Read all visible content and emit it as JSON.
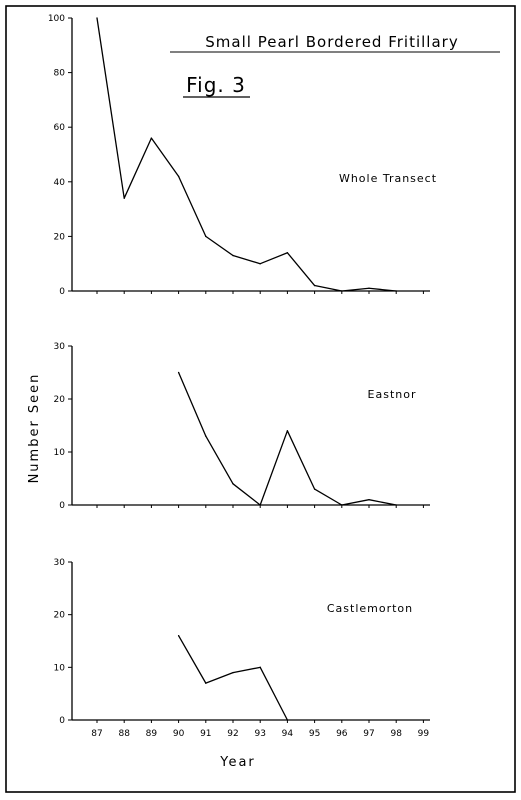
{
  "title": "Small Pearl Bordered Fritillary",
  "figure_label": "Fig. 3",
  "ylabel": "Number Seen",
  "xlabel": "Year",
  "chart_data": [
    {
      "type": "line",
      "title": "Whole Transect",
      "x": [
        "87",
        "88",
        "89",
        "90",
        "91",
        "92",
        "93",
        "94",
        "95",
        "96",
        "97",
        "98",
        "99"
      ],
      "ylim": [
        0,
        100
      ],
      "yticks": [
        0,
        20,
        40,
        60,
        80,
        100
      ],
      "series": [
        {
          "values": [
            100,
            34,
            56,
            42,
            20,
            13,
            10,
            14,
            2,
            0,
            1,
            0,
            null
          ]
        }
      ],
      "grid": false
    },
    {
      "type": "line",
      "title": "Eastnor",
      "x": [
        "87",
        "88",
        "89",
        "90",
        "91",
        "92",
        "93",
        "94",
        "95",
        "96",
        "97",
        "98",
        "99"
      ],
      "ylim": [
        0,
        30
      ],
      "yticks": [
        0,
        10,
        20,
        30
      ],
      "series": [
        {
          "values": [
            null,
            null,
            null,
            25,
            13,
            4,
            0,
            14,
            3,
            0,
            1,
            0,
            null
          ]
        }
      ],
      "grid": false
    },
    {
      "type": "line",
      "title": "Castlemorton",
      "x": [
        "87",
        "88",
        "89",
        "90",
        "91",
        "92",
        "93",
        "94",
        "95",
        "96",
        "97",
        "98",
        "99"
      ],
      "ylim": [
        0,
        30
      ],
      "yticks": [
        0,
        10,
        20,
        30
      ],
      "series": [
        {
          "values": [
            null,
            null,
            null,
            16,
            7,
            9,
            10,
            0,
            null,
            null,
            null,
            null,
            null
          ]
        }
      ],
      "grid": false
    }
  ]
}
